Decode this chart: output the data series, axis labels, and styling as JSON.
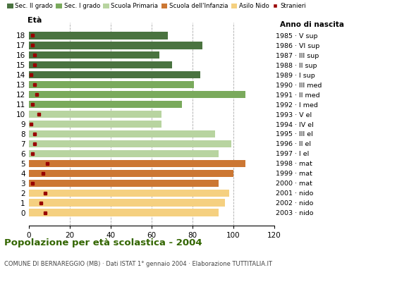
{
  "ages": [
    18,
    17,
    16,
    15,
    14,
    13,
    12,
    11,
    10,
    9,
    8,
    7,
    6,
    5,
    4,
    3,
    2,
    1,
    0
  ],
  "bar_values": [
    68,
    85,
    64,
    70,
    84,
    81,
    106,
    75,
    65,
    65,
    91,
    99,
    93,
    106,
    100,
    93,
    98,
    96,
    93
  ],
  "stranieri": [
    2,
    2,
    3,
    3,
    1,
    3,
    4,
    2,
    5,
    1,
    3,
    3,
    2,
    9,
    7,
    2,
    8,
    6,
    8
  ],
  "anno_nascita": [
    "1985 · V sup",
    "1986 · VI sup",
    "1987 · III sup",
    "1988 · II sup",
    "1989 · I sup",
    "1990 · III med",
    "1991 · II med",
    "1992 · I med",
    "1993 · V el",
    "1994 · IV el",
    "1995 · III el",
    "1996 · II el",
    "1997 · I el",
    "1998 · mat",
    "1999 · mat",
    "2000 · mat",
    "2001 · nido",
    "2002 · nido",
    "2003 · nido"
  ],
  "bar_colors": {
    "sec2": "#4a7340",
    "sec1": "#7aaa5c",
    "primaria": "#b8d4a0",
    "infanzia": "#cc7733",
    "nido": "#f5d080"
  },
  "bar_color_per_age": [
    "sec2",
    "sec2",
    "sec2",
    "sec2",
    "sec2",
    "sec1",
    "sec1",
    "sec1",
    "primaria",
    "primaria",
    "primaria",
    "primaria",
    "primaria",
    "infanzia",
    "infanzia",
    "infanzia",
    "nido",
    "nido",
    "nido"
  ],
  "stranieri_color": "#990000",
  "title": "Popolazione per età scolastica - 2004",
  "subtitle": "COMUNE DI BERNAREGGIO (MB) · Dati ISTAT 1° gennaio 2004 · Elaborazione TUTTITALIA.IT",
  "ylabel": "Età",
  "anno_label": "Anno di nascita",
  "xlim": [
    0,
    120
  ],
  "xticks": [
    0,
    20,
    40,
    60,
    80,
    100,
    120
  ],
  "legend_labels": [
    "Sec. II grado",
    "Sec. I grado",
    "Scuola Primaria",
    "Scuola dell'Infanzia",
    "Asilo Nido",
    "Stranieri"
  ],
  "legend_colors": [
    "#4a7340",
    "#7aaa5c",
    "#b8d4a0",
    "#cc7733",
    "#f5d080",
    "#990000"
  ],
  "legend_marker": [
    "bar",
    "bar",
    "bar",
    "bar",
    "bar",
    "square"
  ],
  "background_color": "#ffffff",
  "grid_color": "#aaaaaa",
  "title_color": "#336600",
  "subtitle_color": "#444444"
}
